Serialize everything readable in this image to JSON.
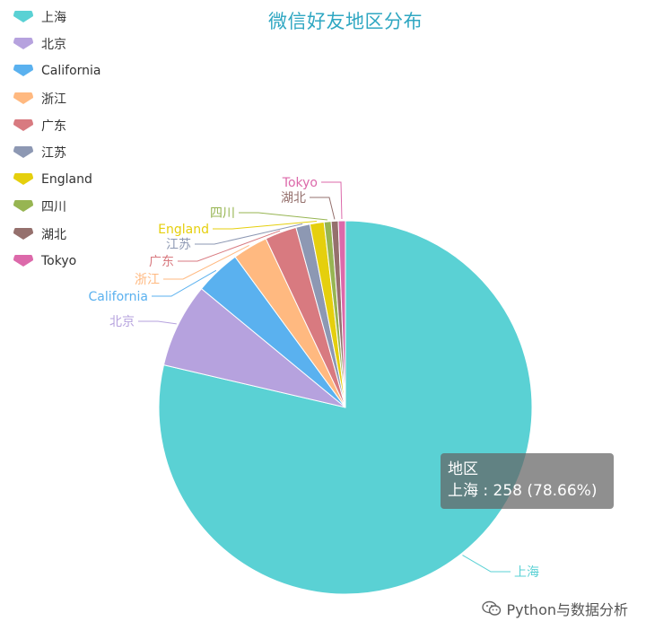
{
  "chart_data": {
    "type": "pie",
    "title": "微信好友地区分布",
    "slices": [
      {
        "name": "上海",
        "value": 258,
        "color": "#5ad1d4"
      },
      {
        "name": "北京",
        "value": 24,
        "color": "#b6a2de"
      },
      {
        "name": "California",
        "value": 13,
        "color": "#5ab1ef"
      },
      {
        "name": "浙江",
        "value": 10,
        "color": "#ffb980"
      },
      {
        "name": "广东",
        "value": 9,
        "color": "#d87a80"
      },
      {
        "name": "江苏",
        "value": 4,
        "color": "#8d98b3"
      },
      {
        "name": "England",
        "value": 4,
        "color": "#e5cf0d"
      },
      {
        "name": "四川",
        "value": 2,
        "color": "#97b552"
      },
      {
        "name": "湖北",
        "value": 2,
        "color": "#95706d"
      },
      {
        "name": "Tokyo",
        "value": 2,
        "color": "#dc69aa"
      }
    ],
    "legend_position": "top-left"
  },
  "tooltip": {
    "title": "地区",
    "text": "上海 : 258 (78.66%)"
  },
  "watermark": {
    "text": "Python与数据分析",
    "icon": "wechat-icon"
  }
}
